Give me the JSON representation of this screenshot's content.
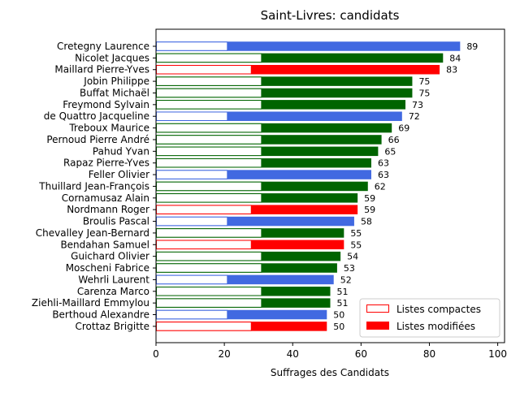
{
  "chart_data": {
    "type": "bar",
    "orientation": "horizontal",
    "title": "Saint-Livres: candidats",
    "xlabel": "Suffrages des Candidats",
    "ylabel": "",
    "xlim": [
      0,
      102
    ],
    "xticks": [
      0,
      20,
      40,
      60,
      80,
      100
    ],
    "grid": false,
    "legend_position": "bottom-right",
    "legend": [
      {
        "label": "Listes compactes",
        "style": "outline",
        "color": "#ff0000"
      },
      {
        "label": "Listes modifiées",
        "style": "filled",
        "color": "#ff0000"
      }
    ],
    "candidates": [
      {
        "name": "Cretegny Laurence",
        "total": 89,
        "compact": 21,
        "color": "#4169e1"
      },
      {
        "name": "Nicolet Jacques",
        "total": 84,
        "compact": 31,
        "color": "#006400"
      },
      {
        "name": "Maillard Pierre-Yves",
        "total": 83,
        "compact": 28,
        "color": "#ff0000"
      },
      {
        "name": "Jobin Philippe",
        "total": 75,
        "compact": 31,
        "color": "#006400"
      },
      {
        "name": "Buffat Michaël",
        "total": 75,
        "compact": 31,
        "color": "#006400"
      },
      {
        "name": "Freymond Sylvain",
        "total": 73,
        "compact": 31,
        "color": "#006400"
      },
      {
        "name": "de Quattro Jacqueline",
        "total": 72,
        "compact": 21,
        "color": "#4169e1"
      },
      {
        "name": "Treboux Maurice",
        "total": 69,
        "compact": 31,
        "color": "#006400"
      },
      {
        "name": "Pernoud Pierre André",
        "total": 66,
        "compact": 31,
        "color": "#006400"
      },
      {
        "name": "Pahud Yvan",
        "total": 65,
        "compact": 31,
        "color": "#006400"
      },
      {
        "name": "Rapaz Pierre-Yves",
        "total": 63,
        "compact": 31,
        "color": "#006400"
      },
      {
        "name": "Feller Olivier",
        "total": 63,
        "compact": 21,
        "color": "#4169e1"
      },
      {
        "name": "Thuillard Jean-François",
        "total": 62,
        "compact": 31,
        "color": "#006400"
      },
      {
        "name": "Cornamusaz Alain",
        "total": 59,
        "compact": 31,
        "color": "#006400"
      },
      {
        "name": "Nordmann Roger",
        "total": 59,
        "compact": 28,
        "color": "#ff0000"
      },
      {
        "name": "Broulis Pascal",
        "total": 58,
        "compact": 21,
        "color": "#4169e1"
      },
      {
        "name": "Chevalley Jean-Bernard",
        "total": 55,
        "compact": 31,
        "color": "#006400"
      },
      {
        "name": "Bendahan Samuel",
        "total": 55,
        "compact": 28,
        "color": "#ff0000"
      },
      {
        "name": "Guichard Olivier",
        "total": 54,
        "compact": 31,
        "color": "#006400"
      },
      {
        "name": "Moscheni Fabrice",
        "total": 53,
        "compact": 31,
        "color": "#006400"
      },
      {
        "name": "Wehrli Laurent",
        "total": 52,
        "compact": 21,
        "color": "#4169e1"
      },
      {
        "name": "Carenza Marco",
        "total": 51,
        "compact": 31,
        "color": "#006400"
      },
      {
        "name": "Ziehli-Maillard Emmylou",
        "total": 51,
        "compact": 31,
        "color": "#006400"
      },
      {
        "name": "Berthoud Alexandre",
        "total": 50,
        "compact": 21,
        "color": "#4169e1"
      },
      {
        "name": "Crottaz Brigitte",
        "total": 50,
        "compact": 28,
        "color": "#ff0000"
      }
    ]
  }
}
